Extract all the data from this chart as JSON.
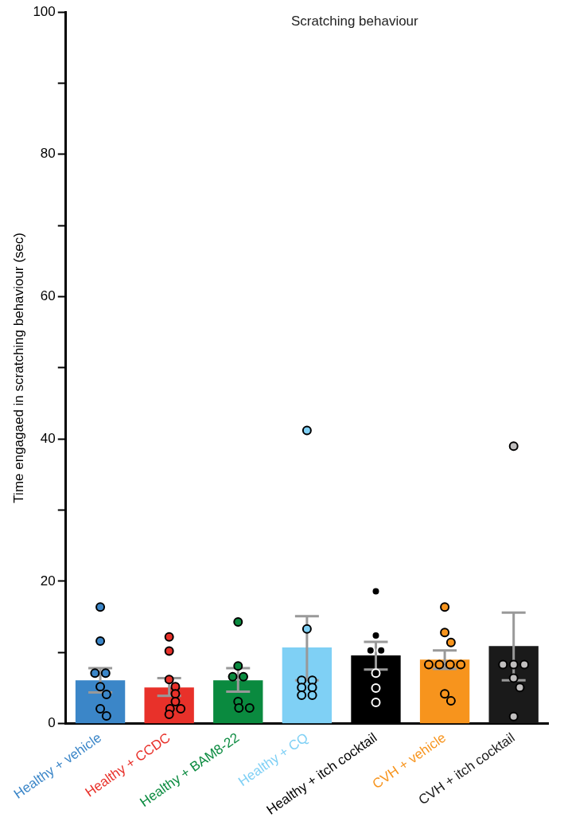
{
  "chart_data": {
    "type": "bar",
    "title": "Scratching behaviour",
    "ylabel": "Time engagaed in scratching behaviour (sec)",
    "categories": [
      "Healthy + vehicle",
      "Healthy + CCDC",
      "Healthy + BAM8-22",
      "Healthy + CQ",
      "Healthy + itch cocktail",
      "CVH + vehicle",
      "CVH + itch cocktail"
    ],
    "ylim": [
      0,
      100
    ],
    "yticks": [
      0,
      {
        "value": 10,
        "label": null
      },
      20,
      {
        "value": 30,
        "label": null
      },
      40,
      {
        "value": 50,
        "label": null
      },
      60,
      {
        "value": 70,
        "label": null
      },
      80,
      {
        "value": 90,
        "label": null
      },
      100
    ],
    "grid": false,
    "legend": false,
    "series": [
      {
        "type": "bar",
        "values": [
          6.1,
          5.1,
          6.1,
          10.7,
          9.6,
          9.0,
          10.9
        ],
        "colors": [
          "#3b86c8",
          "#e8312a",
          "#0a8a3f",
          "#7fd0f5",
          "#000000",
          "#f7941d",
          "#1a1a1a"
        ],
        "errors": [
          [
            4.4,
            7.8
          ],
          [
            3.9,
            6.4
          ],
          [
            4.5,
            7.8
          ],
          [
            6.1,
            15.1
          ],
          [
            7.6,
            11.5
          ],
          [
            7.7,
            10.3
          ],
          [
            6.1,
            15.6
          ]
        ]
      },
      {
        "type": "scatter",
        "marker": "circle",
        "x": [
          "Healthy + vehicle",
          "Healthy + vehicle",
          "Healthy + vehicle",
          "Healthy + vehicle",
          "Healthy + vehicle",
          "Healthy + vehicle",
          "Healthy + vehicle",
          "Healthy + vehicle",
          "Healthy + CCDC",
          "Healthy + CCDC",
          "Healthy + CCDC",
          "Healthy + CCDC",
          "Healthy + CCDC",
          "Healthy + CCDC",
          "Healthy + CCDC",
          "Healthy + CCDC",
          "Healthy + CCDC",
          "Healthy + BAM8-22",
          "Healthy + BAM8-22",
          "Healthy + BAM8-22",
          "Healthy + BAM8-22",
          "Healthy + BAM8-22",
          "Healthy + BAM8-22",
          "Healthy + BAM8-22",
          "Healthy + CQ",
          "Healthy + CQ",
          "Healthy + CQ",
          "Healthy + CQ",
          "Healthy + CQ",
          "Healthy + CQ",
          "Healthy + CQ",
          "Healthy + CQ",
          "Healthy + itch cocktail",
          "Healthy + itch cocktail",
          "Healthy + itch cocktail",
          "Healthy + itch cocktail",
          "Healthy + itch cocktail",
          "Healthy + itch cocktail",
          "Healthy + itch cocktail",
          "CVH + vehicle",
          "CVH + vehicle",
          "CVH + vehicle",
          "CVH + vehicle",
          "CVH + vehicle",
          "CVH + vehicle",
          "CVH + vehicle",
          "CVH + vehicle",
          "CVH + vehicle",
          "CVH + itch cocktail",
          "CVH + itch cocktail",
          "CVH + itch cocktail",
          "CVH + itch cocktail",
          "CVH + itch cocktail",
          "CVH + itch cocktail",
          "CVH + itch cocktail"
        ],
        "values": [
          16.4,
          11.6,
          7.1,
          7.1,
          5.2,
          4.1,
          2.1,
          1.1,
          12.2,
          10.2,
          6.2,
          5.2,
          4.2,
          3.1,
          2.1,
          2.1,
          1.3,
          14.3,
          8.1,
          6.6,
          6.6,
          3.1,
          2.2,
          2.2,
          41.2,
          13.3,
          6.1,
          6.1,
          5.1,
          5.1,
          4.0,
          4.0,
          18.6,
          12.4,
          10.3,
          10.3,
          7.1,
          5.0,
          3.0,
          16.4,
          12.8,
          11.4,
          8.3,
          8.3,
          8.3,
          8.3,
          4.2,
          3.2,
          39.0,
          8.3,
          8.3,
          8.3,
          6.4,
          5.1,
          1.0
        ],
        "colors": [
          "#3b86c8",
          "#3b86c8",
          "#3b86c8",
          "#3b86c8",
          "#3b86c8",
          "#3b86c8",
          "#3b86c8",
          "#3b86c8",
          "#e8312a",
          "#e8312a",
          "#e8312a",
          "#e8312a",
          "#e8312a",
          "#e8312a",
          "#e8312a",
          "#e8312a",
          "#e8312a",
          "#0a8a3f",
          "#0a8a3f",
          "#0a8a3f",
          "#0a8a3f",
          "#0a8a3f",
          "#0a8a3f",
          "#0a8a3f",
          "#7fd0f5",
          "#7fd0f5",
          "#7fd0f5",
          "#7fd0f5",
          "#7fd0f5",
          "#7fd0f5",
          "#7fd0f5",
          "#7fd0f5",
          "#000000",
          "#000000",
          "#000000",
          "#000000",
          "#000000",
          "#000000",
          "#000000",
          "#f7941d",
          "#f7941d",
          "#f7941d",
          "#f7941d",
          "#f7941d",
          "#f7941d",
          "#f7941d",
          "#f7941d",
          "#f7941d",
          "#c0bebe",
          "#c0bebe",
          "#c0bebe",
          "#c0bebe",
          "#c0bebe",
          "#c0bebe",
          "#c0bebe"
        ]
      }
    ]
  }
}
